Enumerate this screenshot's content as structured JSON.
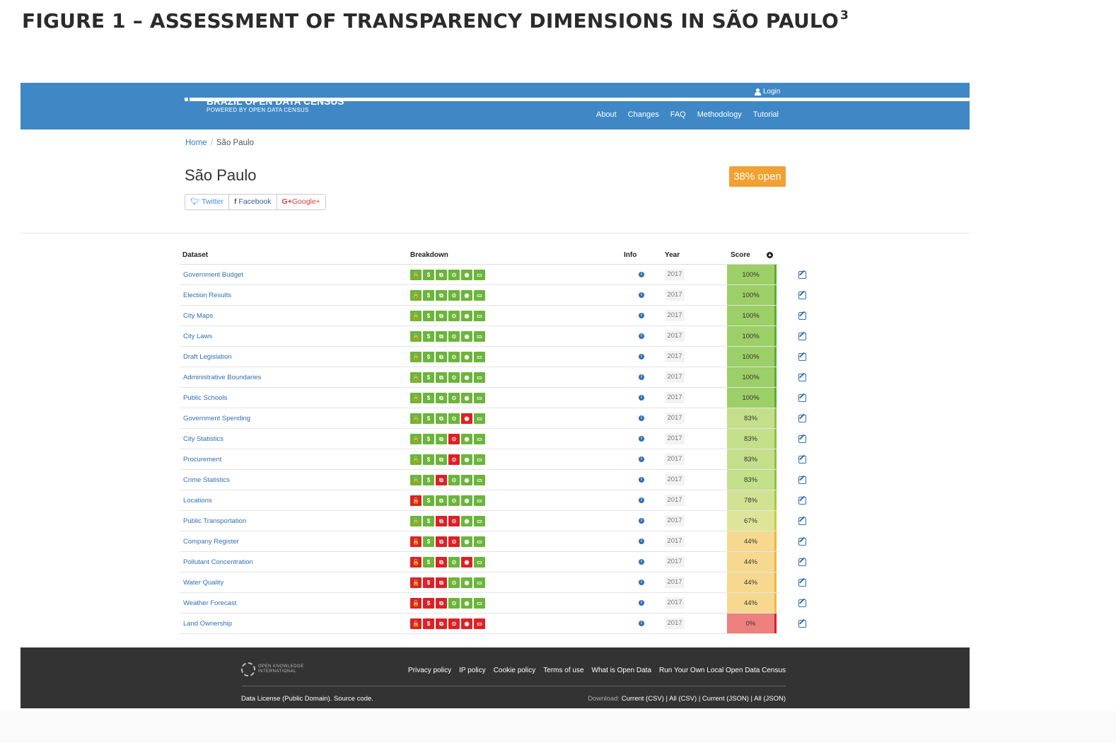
{
  "figure": {
    "title": "FIGURE 1 – ASSESSMENT OF TRANSPARENCY DIMENSIONS IN SÃO PAULO",
    "superscript": "3"
  },
  "header": {
    "brand_title": "BRAZIL OPEN DATA CENSUS",
    "brand_sub": "POWERED BY OPEN DATA CENSUS",
    "login": "Login",
    "nav": [
      "About",
      "Changes",
      "FAQ",
      "Methodology",
      "Tutorial"
    ]
  },
  "breadcrumb": {
    "home": "Home",
    "separator": "/",
    "current": "São Paulo"
  },
  "place": {
    "title": "São Paulo",
    "badge": "38% open"
  },
  "share": {
    "twitter": "Twitter",
    "facebook": "Facebook",
    "google": "Google+"
  },
  "table": {
    "headers": {
      "dataset": "Dataset",
      "breakdown": "Breakdown",
      "info": "Info",
      "year": "Year",
      "score": "Score"
    },
    "rows": [
      {
        "dataset": "Government Budget",
        "breakdown": [
          "g",
          "g",
          "g",
          "g",
          "g",
          "g"
        ],
        "year": "2017",
        "score": "100%",
        "bg": "#9ccf67",
        "bar": "#5aae2b"
      },
      {
        "dataset": "Election Results",
        "breakdown": [
          "g",
          "g",
          "g",
          "g",
          "g",
          "g"
        ],
        "year": "2017",
        "score": "100%",
        "bg": "#9ccf67",
        "bar": "#5aae2b"
      },
      {
        "dataset": "City Maps",
        "breakdown": [
          "g",
          "g",
          "g",
          "g",
          "g",
          "g"
        ],
        "year": "2017",
        "score": "100%",
        "bg": "#9ccf67",
        "bar": "#5aae2b"
      },
      {
        "dataset": "City Laws",
        "breakdown": [
          "g",
          "g",
          "g",
          "g",
          "g",
          "g"
        ],
        "year": "2017",
        "score": "100%",
        "bg": "#9ccf67",
        "bar": "#5aae2b"
      },
      {
        "dataset": "Draft Legislation",
        "breakdown": [
          "g",
          "g",
          "g",
          "g",
          "g",
          "g"
        ],
        "year": "2017",
        "score": "100%",
        "bg": "#9ccf67",
        "bar": "#5aae2b"
      },
      {
        "dataset": "Administrative Boundaries",
        "breakdown": [
          "g",
          "g",
          "g",
          "g",
          "g",
          "g"
        ],
        "year": "2017",
        "score": "100%",
        "bg": "#9ccf67",
        "bar": "#5aae2b"
      },
      {
        "dataset": "Public Schools",
        "breakdown": [
          "g",
          "g",
          "g",
          "g",
          "g",
          "g"
        ],
        "year": "2017",
        "score": "100%",
        "bg": "#9ccf67",
        "bar": "#5aae2b"
      },
      {
        "dataset": "Government Spending",
        "breakdown": [
          "g",
          "g",
          "g",
          "g",
          "r",
          "g"
        ],
        "year": "2017",
        "score": "83%",
        "bg": "#c4df8a",
        "bar": "#8cc23f"
      },
      {
        "dataset": "City Statistics",
        "breakdown": [
          "g",
          "g",
          "g",
          "r",
          "g",
          "g"
        ],
        "year": "2017",
        "score": "83%",
        "bg": "#c4df8a",
        "bar": "#8cc23f"
      },
      {
        "dataset": "Procurement",
        "breakdown": [
          "g",
          "g",
          "g",
          "r",
          "g",
          "g"
        ],
        "year": "2017",
        "score": "83%",
        "bg": "#c4df8a",
        "bar": "#8cc23f"
      },
      {
        "dataset": "Crime Statistics",
        "breakdown": [
          "g",
          "g",
          "r",
          "g",
          "g",
          "g"
        ],
        "year": "2017",
        "score": "83%",
        "bg": "#c4df8a",
        "bar": "#8cc23f"
      },
      {
        "dataset": "Locations",
        "breakdown": [
          "r",
          "g",
          "g",
          "g",
          "g",
          "g"
        ],
        "year": "2017",
        "score": "78%",
        "bg": "#d1e393",
        "bar": "#a6c93a"
      },
      {
        "dataset": "Public Transportation",
        "breakdown": [
          "g",
          "g",
          "r",
          "r",
          "g",
          "g"
        ],
        "year": "2017",
        "score": "67%",
        "bg": "#dfe598",
        "bar": "#c2cf3c"
      },
      {
        "dataset": "Company Register",
        "breakdown": [
          "r",
          "g",
          "r",
          "r",
          "g",
          "g"
        ],
        "year": "2017",
        "score": "44%",
        "bg": "#f6d98f",
        "bar": "#eeb63b"
      },
      {
        "dataset": "Pollutant Concentration",
        "breakdown": [
          "r",
          "g",
          "r",
          "g",
          "r",
          "g"
        ],
        "year": "2017",
        "score": "44%",
        "bg": "#f6d98f",
        "bar": "#eeb63b"
      },
      {
        "dataset": "Water Quality",
        "breakdown": [
          "r",
          "r",
          "r",
          "g",
          "g",
          "g"
        ],
        "year": "2017",
        "score": "44%",
        "bg": "#f6d98f",
        "bar": "#eeb63b"
      },
      {
        "dataset": "Weather Forecast",
        "breakdown": [
          "r",
          "r",
          "r",
          "g",
          "g",
          "g"
        ],
        "year": "2017",
        "score": "44%",
        "bg": "#f6d98f",
        "bar": "#eeb63b"
      },
      {
        "dataset": "Land Ownership",
        "breakdown": [
          "r",
          "r",
          "r",
          "r",
          "r",
          "r"
        ],
        "year": "2017",
        "score": "0%",
        "bg": "#ee7f7f",
        "bar": "#dd2127"
      }
    ]
  },
  "breakdown_icons": [
    "lock-icon",
    "dollar-icon",
    "copy-icon",
    "clock-icon",
    "eye-icon",
    "card-icon"
  ],
  "breakdown_glyphs": [
    "🔓",
    "$",
    "⧉",
    "⊙",
    "◉",
    "▭"
  ],
  "colors": {
    "header_blue": "#3f88c5",
    "badge_orange": "#f0a131",
    "ok_green": "#6bb53a",
    "bad_red": "#dd2127",
    "footer_bg": "#333333"
  },
  "footer": {
    "logo_text": "OPEN KNOWLEDGE INTERNATIONAL",
    "links": [
      "Privacy policy",
      "IP policy",
      "Cookie policy",
      "Terms of use",
      "What is Open Data",
      "Run Your Own Local Open Data Census"
    ],
    "license": "Data License (Public Domain). Source code.",
    "download_label": "Download:",
    "download_links": "Current (CSV) | All (CSV) | Current (JSON) | All (JSON)"
  }
}
